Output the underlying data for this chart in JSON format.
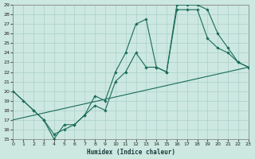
{
  "xlabel": "Humidex (Indice chaleur)",
  "bg_color": "#cce8e0",
  "line_color": "#1a6b5a",
  "grid_color": "#aad0c8",
  "ylim": [
    15,
    29
  ],
  "xlim": [
    0,
    23
  ],
  "yticks": [
    15,
    16,
    17,
    18,
    19,
    20,
    21,
    22,
    23,
    24,
    25,
    26,
    27,
    28,
    29
  ],
  "xticks": [
    0,
    1,
    2,
    3,
    4,
    5,
    6,
    7,
    8,
    9,
    10,
    11,
    12,
    13,
    14,
    15,
    16,
    17,
    18,
    19,
    20,
    21,
    22,
    23
  ],
  "line1_x": [
    0,
    1,
    2,
    3,
    4,
    5,
    6,
    7,
    8,
    9,
    10,
    11,
    12,
    13,
    14,
    15,
    16,
    17,
    18,
    19,
    20,
    21,
    22,
    23
  ],
  "line1_y": [
    20,
    19,
    18,
    17,
    15,
    16.5,
    16.5,
    17.5,
    19.5,
    19,
    22,
    24,
    27,
    27.5,
    22.5,
    22,
    29,
    29,
    29,
    28.5,
    26,
    24.5,
    23,
    22.5
  ],
  "line2_x": [
    0,
    2,
    3,
    4,
    5,
    6,
    7,
    8,
    9,
    10,
    11,
    12,
    13,
    14,
    15,
    16,
    17,
    18,
    19,
    20,
    21,
    22,
    23
  ],
  "line2_y": [
    20,
    18,
    17,
    15.5,
    16,
    16.5,
    17.5,
    18.5,
    18,
    21,
    22,
    24,
    22.5,
    22.5,
    22,
    28.5,
    28.5,
    28.5,
    25.5,
    24.5,
    24,
    23,
    22.5
  ],
  "line3_x": [
    0,
    23
  ],
  "line3_y": [
    17,
    22.5
  ]
}
